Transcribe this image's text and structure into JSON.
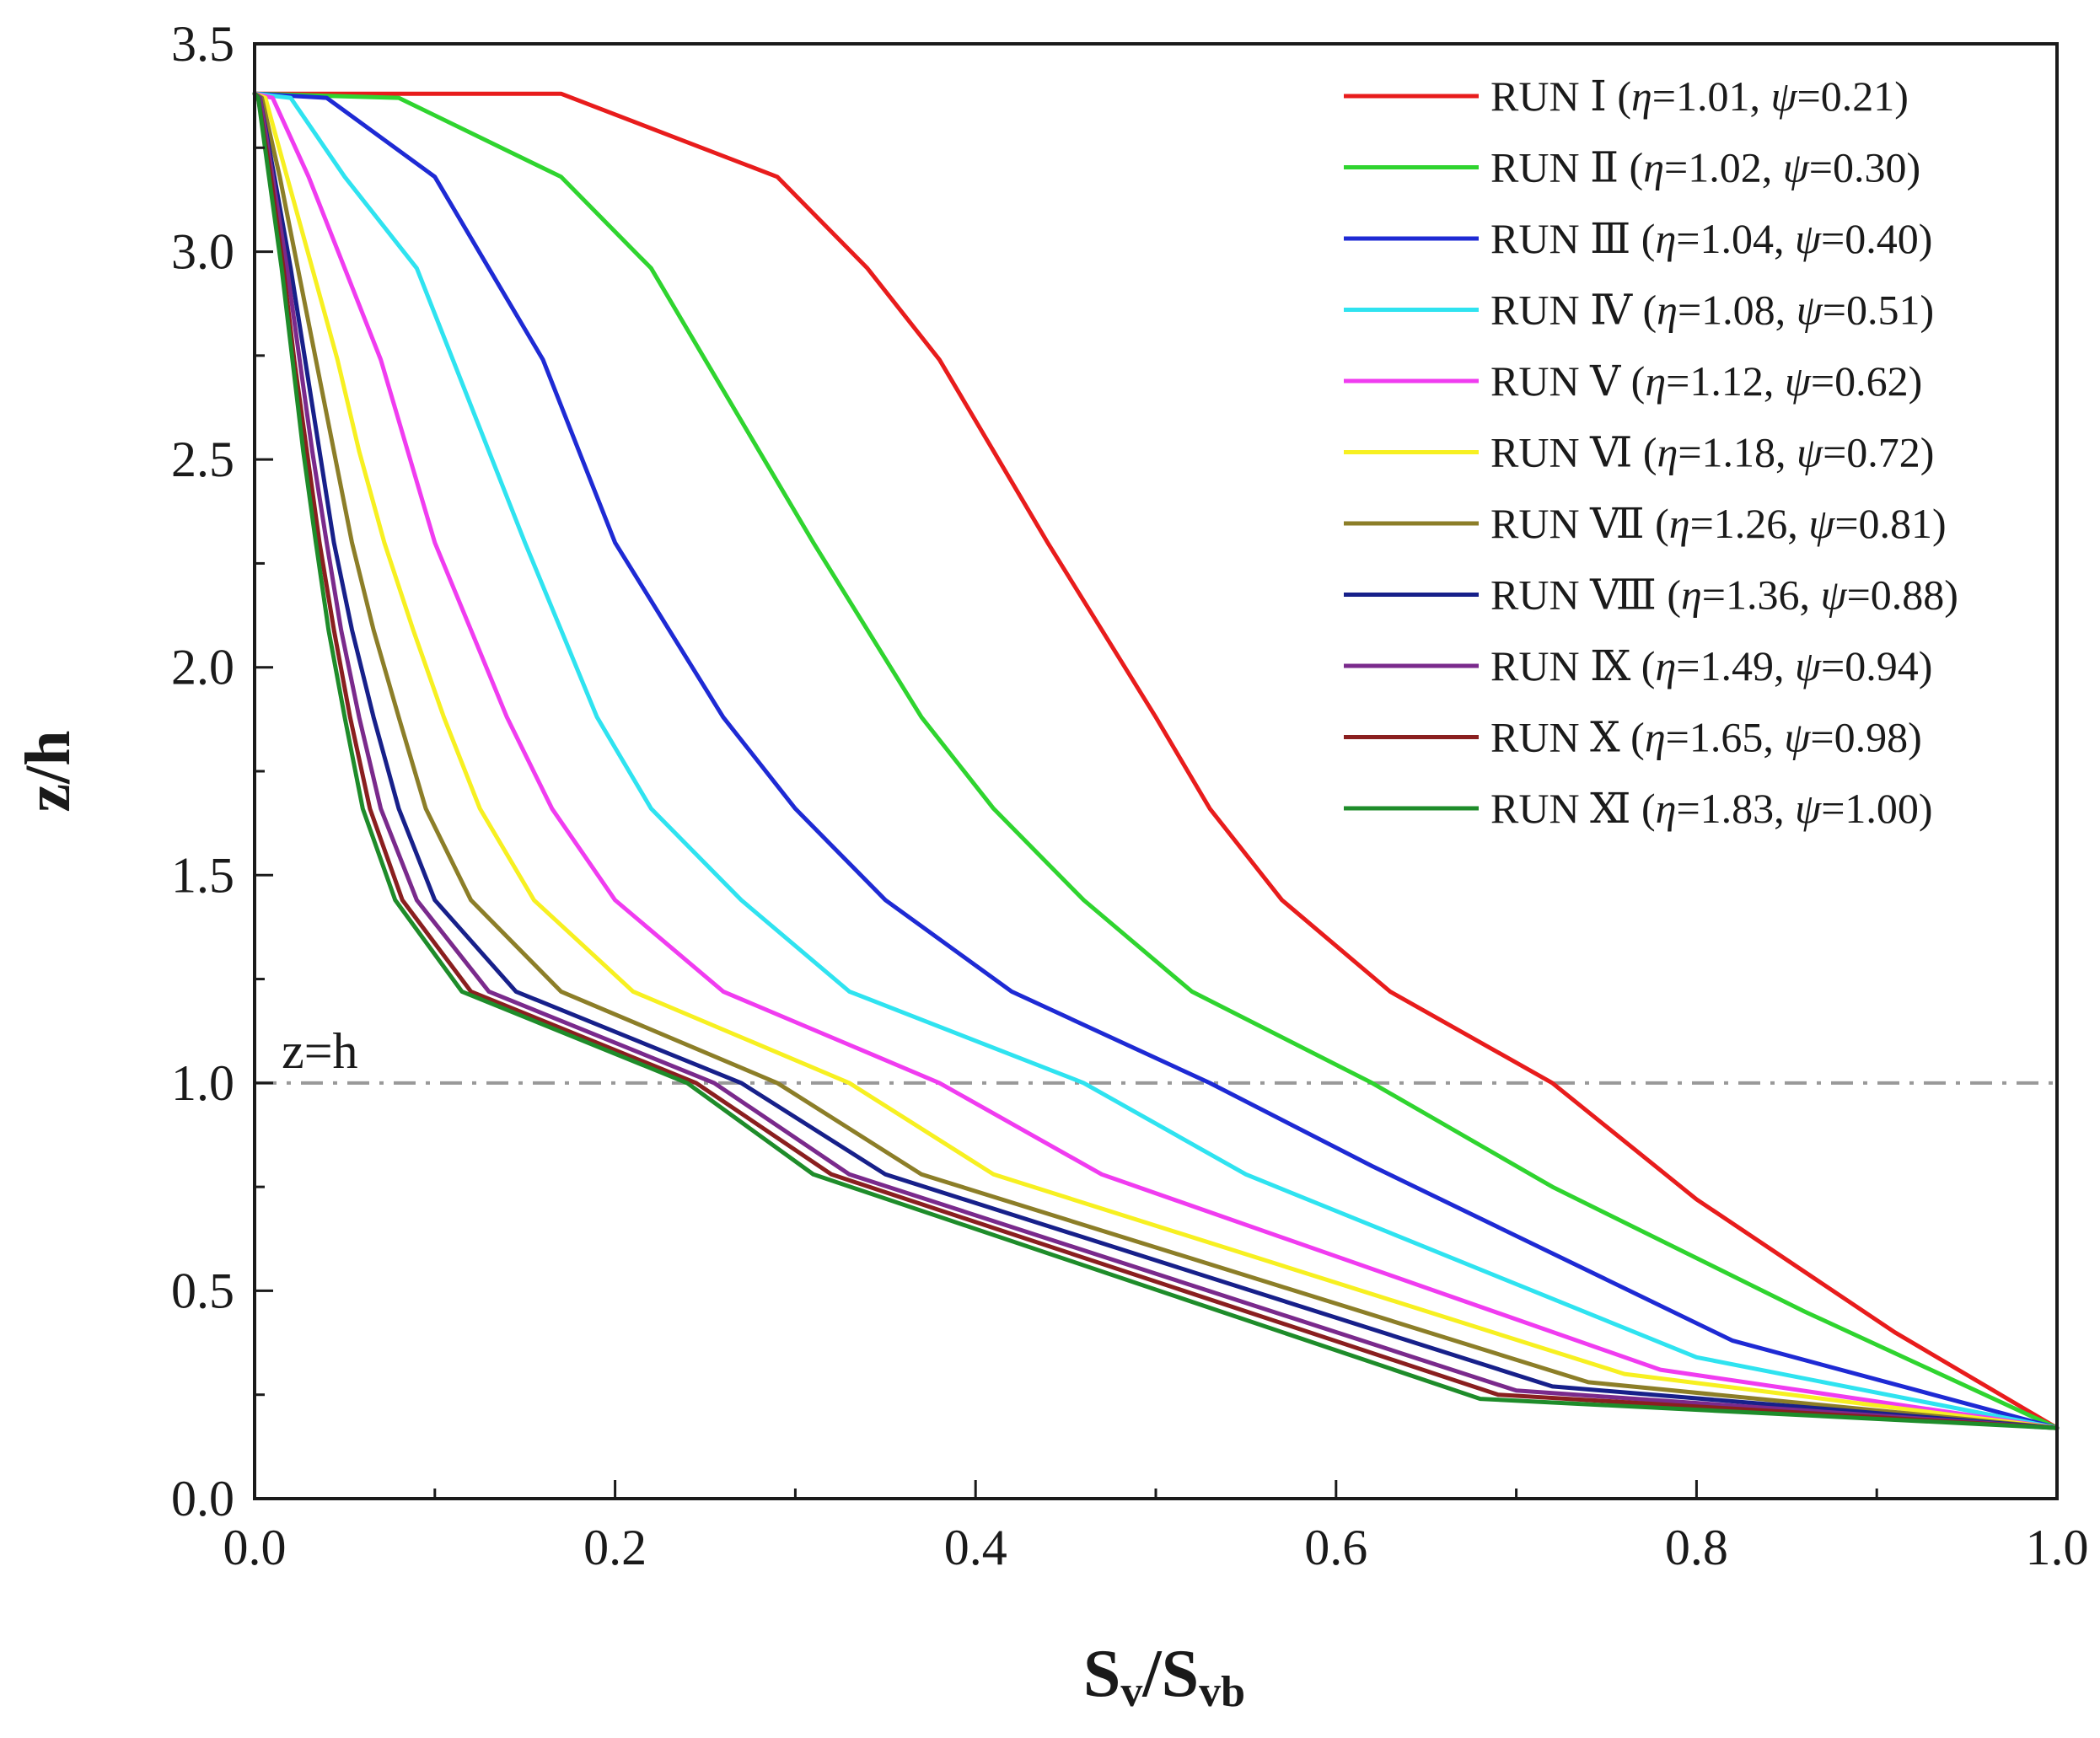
{
  "chart_data": {
    "type": "line",
    "title": "",
    "xlabel": "S_v/S_vb",
    "xlabel_parts": {
      "main": "S",
      "sub1": "v",
      "sep": "/",
      "main2": "S",
      "sub2": "vb"
    },
    "ylabel": "z/h",
    "xlim": [
      0.0,
      1.0
    ],
    "ylim": [
      0.0,
      3.5
    ],
    "xticks": [
      "0.0",
      "0.2",
      "0.4",
      "0.6",
      "0.8",
      "1.0"
    ],
    "yticks": [
      "0.0",
      "0.5",
      "1.0",
      "1.5",
      "2.0",
      "2.5",
      "3.0",
      "3.5"
    ],
    "xtick_values": [
      0.0,
      0.2,
      0.4,
      0.6,
      0.8,
      1.0
    ],
    "ytick_values": [
      0.0,
      0.5,
      1.0,
      1.5,
      2.0,
      2.5,
      3.0,
      3.5
    ],
    "grid": false,
    "legend_position": "top-right",
    "reference_line": {
      "y": 1.0,
      "label": "z=h",
      "color": "#999999"
    },
    "series": [
      {
        "run": "RUN Ⅰ",
        "eta": "1.01",
        "psi": "0.21",
        "color": "#e81c1c",
        "points": [
          [
            1.0,
            0.17
          ],
          [
            0.91,
            0.4
          ],
          [
            0.8,
            0.72
          ],
          [
            0.72,
            1.0
          ],
          [
            0.63,
            1.22
          ],
          [
            0.57,
            1.44
          ],
          [
            0.53,
            1.66
          ],
          [
            0.5,
            1.88
          ],
          [
            0.47,
            2.09
          ],
          [
            0.44,
            2.3
          ],
          [
            0.41,
            2.52
          ],
          [
            0.38,
            2.74
          ],
          [
            0.34,
            2.96
          ],
          [
            0.29,
            3.18
          ],
          [
            0.17,
            3.38
          ],
          [
            0.0,
            3.38
          ]
        ]
      },
      {
        "run": "RUN Ⅱ",
        "eta": "1.02",
        "psi": "0.30",
        "color": "#2fd42f",
        "points": [
          [
            1.0,
            0.17
          ],
          [
            0.86,
            0.45
          ],
          [
            0.72,
            0.75
          ],
          [
            0.62,
            1.0
          ],
          [
            0.52,
            1.22
          ],
          [
            0.46,
            1.44
          ],
          [
            0.41,
            1.66
          ],
          [
            0.37,
            1.88
          ],
          [
            0.34,
            2.09
          ],
          [
            0.31,
            2.3
          ],
          [
            0.28,
            2.52
          ],
          [
            0.25,
            2.74
          ],
          [
            0.22,
            2.96
          ],
          [
            0.17,
            3.18
          ],
          [
            0.08,
            3.37
          ],
          [
            0.0,
            3.38
          ]
        ]
      },
      {
        "run": "RUN Ⅲ",
        "eta": "1.04",
        "psi": "0.40",
        "color": "#1e2ad4",
        "points": [
          [
            1.0,
            0.17
          ],
          [
            0.82,
            0.38
          ],
          [
            0.62,
            0.8
          ],
          [
            0.53,
            1.0
          ],
          [
            0.42,
            1.22
          ],
          [
            0.35,
            1.44
          ],
          [
            0.3,
            1.66
          ],
          [
            0.26,
            1.88
          ],
          [
            0.23,
            2.09
          ],
          [
            0.2,
            2.3
          ],
          [
            0.18,
            2.52
          ],
          [
            0.16,
            2.74
          ],
          [
            0.13,
            2.96
          ],
          [
            0.1,
            3.18
          ],
          [
            0.04,
            3.37
          ],
          [
            0.0,
            3.38
          ]
        ]
      },
      {
        "run": "RUN Ⅳ",
        "eta": "1.08",
        "psi": "0.51",
        "color": "#2fe3f0",
        "points": [
          [
            1.0,
            0.17
          ],
          [
            0.8,
            0.34
          ],
          [
            0.55,
            0.78
          ],
          [
            0.46,
            1.0
          ],
          [
            0.33,
            1.22
          ],
          [
            0.27,
            1.44
          ],
          [
            0.22,
            1.66
          ],
          [
            0.19,
            1.88
          ],
          [
            0.17,
            2.09
          ],
          [
            0.15,
            2.3
          ],
          [
            0.13,
            2.52
          ],
          [
            0.11,
            2.74
          ],
          [
            0.09,
            2.96
          ],
          [
            0.05,
            3.18
          ],
          [
            0.02,
            3.37
          ],
          [
            0.0,
            3.38
          ]
        ]
      },
      {
        "run": "RUN Ⅴ",
        "eta": "1.12",
        "psi": "0.62",
        "color": "#f03cf0",
        "points": [
          [
            1.0,
            0.17
          ],
          [
            0.78,
            0.31
          ],
          [
            0.47,
            0.78
          ],
          [
            0.38,
            1.0
          ],
          [
            0.26,
            1.22
          ],
          [
            0.2,
            1.44
          ],
          [
            0.165,
            1.66
          ],
          [
            0.14,
            1.88
          ],
          [
            0.12,
            2.09
          ],
          [
            0.1,
            2.3
          ],
          [
            0.085,
            2.52
          ],
          [
            0.07,
            2.74
          ],
          [
            0.05,
            2.96
          ],
          [
            0.03,
            3.18
          ],
          [
            0.01,
            3.37
          ],
          [
            0.0,
            3.38
          ]
        ]
      },
      {
        "run": "RUN Ⅵ",
        "eta": "1.18",
        "psi": "0.72",
        "color": "#f7f021",
        "points": [
          [
            1.0,
            0.17
          ],
          [
            0.76,
            0.3
          ],
          [
            0.41,
            0.78
          ],
          [
            0.33,
            1.0
          ],
          [
            0.21,
            1.22
          ],
          [
            0.155,
            1.44
          ],
          [
            0.125,
            1.66
          ],
          [
            0.105,
            1.88
          ],
          [
            0.088,
            2.09
          ],
          [
            0.072,
            2.3
          ],
          [
            0.058,
            2.52
          ],
          [
            0.046,
            2.74
          ],
          [
            0.032,
            2.96
          ],
          [
            0.018,
            3.18
          ],
          [
            0.006,
            3.37
          ],
          [
            0.0,
            3.38
          ]
        ]
      },
      {
        "run": "RUN Ⅶ",
        "eta": "1.26",
        "psi": "0.81",
        "color": "#8c7e28",
        "points": [
          [
            1.0,
            0.17
          ],
          [
            0.74,
            0.28
          ],
          [
            0.37,
            0.78
          ],
          [
            0.29,
            1.0
          ],
          [
            0.17,
            1.22
          ],
          [
            0.12,
            1.44
          ],
          [
            0.095,
            1.66
          ],
          [
            0.08,
            1.88
          ],
          [
            0.066,
            2.09
          ],
          [
            0.054,
            2.3
          ],
          [
            0.044,
            2.52
          ],
          [
            0.034,
            2.74
          ],
          [
            0.024,
            2.96
          ],
          [
            0.014,
            3.18
          ],
          [
            0.004,
            3.37
          ],
          [
            0.0,
            3.38
          ]
        ]
      },
      {
        "run": "RUN Ⅷ",
        "eta": "1.36",
        "psi": "0.88",
        "color": "#17208a",
        "points": [
          [
            1.0,
            0.17
          ],
          [
            0.72,
            0.27
          ],
          [
            0.35,
            0.78
          ],
          [
            0.27,
            1.0
          ],
          [
            0.145,
            1.22
          ],
          [
            0.1,
            1.44
          ],
          [
            0.08,
            1.66
          ],
          [
            0.066,
            1.88
          ],
          [
            0.054,
            2.09
          ],
          [
            0.044,
            2.3
          ],
          [
            0.036,
            2.52
          ],
          [
            0.028,
            2.74
          ],
          [
            0.02,
            2.96
          ],
          [
            0.011,
            3.18
          ],
          [
            0.003,
            3.37
          ],
          [
            0.0,
            3.38
          ]
        ]
      },
      {
        "run": "RUN Ⅸ",
        "eta": "1.49",
        "psi": "0.94",
        "color": "#7a2a8c",
        "points": [
          [
            1.0,
            0.17
          ],
          [
            0.7,
            0.26
          ],
          [
            0.33,
            0.78
          ],
          [
            0.255,
            1.0
          ],
          [
            0.13,
            1.22
          ],
          [
            0.09,
            1.44
          ],
          [
            0.07,
            1.66
          ],
          [
            0.058,
            1.88
          ],
          [
            0.048,
            2.09
          ],
          [
            0.04,
            2.3
          ],
          [
            0.032,
            2.52
          ],
          [
            0.025,
            2.74
          ],
          [
            0.018,
            2.96
          ],
          [
            0.01,
            3.18
          ],
          [
            0.003,
            3.37
          ],
          [
            0.0,
            3.38
          ]
        ]
      },
      {
        "run": "RUN Ⅹ",
        "eta": "1.65",
        "psi": "0.98",
        "color": "#8a1f1f",
        "points": [
          [
            1.0,
            0.17
          ],
          [
            0.69,
            0.25
          ],
          [
            0.32,
            0.78
          ],
          [
            0.245,
            1.0
          ],
          [
            0.12,
            1.22
          ],
          [
            0.082,
            1.44
          ],
          [
            0.064,
            1.66
          ],
          [
            0.053,
            1.88
          ],
          [
            0.044,
            2.09
          ],
          [
            0.036,
            2.3
          ],
          [
            0.029,
            2.52
          ],
          [
            0.022,
            2.74
          ],
          [
            0.016,
            2.96
          ],
          [
            0.009,
            3.18
          ],
          [
            0.002,
            3.37
          ],
          [
            0.0,
            3.38
          ]
        ]
      },
      {
        "run": "RUN Ⅺ",
        "eta": "1.83",
        "psi": "1.00",
        "color": "#1e8c2a",
        "points": [
          [
            1.0,
            0.17
          ],
          [
            0.68,
            0.24
          ],
          [
            0.31,
            0.78
          ],
          [
            0.24,
            1.0
          ],
          [
            0.115,
            1.22
          ],
          [
            0.078,
            1.44
          ],
          [
            0.06,
            1.66
          ],
          [
            0.05,
            1.88
          ],
          [
            0.041,
            2.09
          ],
          [
            0.034,
            2.3
          ],
          [
            0.027,
            2.52
          ],
          [
            0.021,
            2.74
          ],
          [
            0.015,
            2.96
          ],
          [
            0.008,
            3.18
          ],
          [
            0.002,
            3.37
          ],
          [
            0.0,
            3.38
          ]
        ]
      }
    ]
  }
}
